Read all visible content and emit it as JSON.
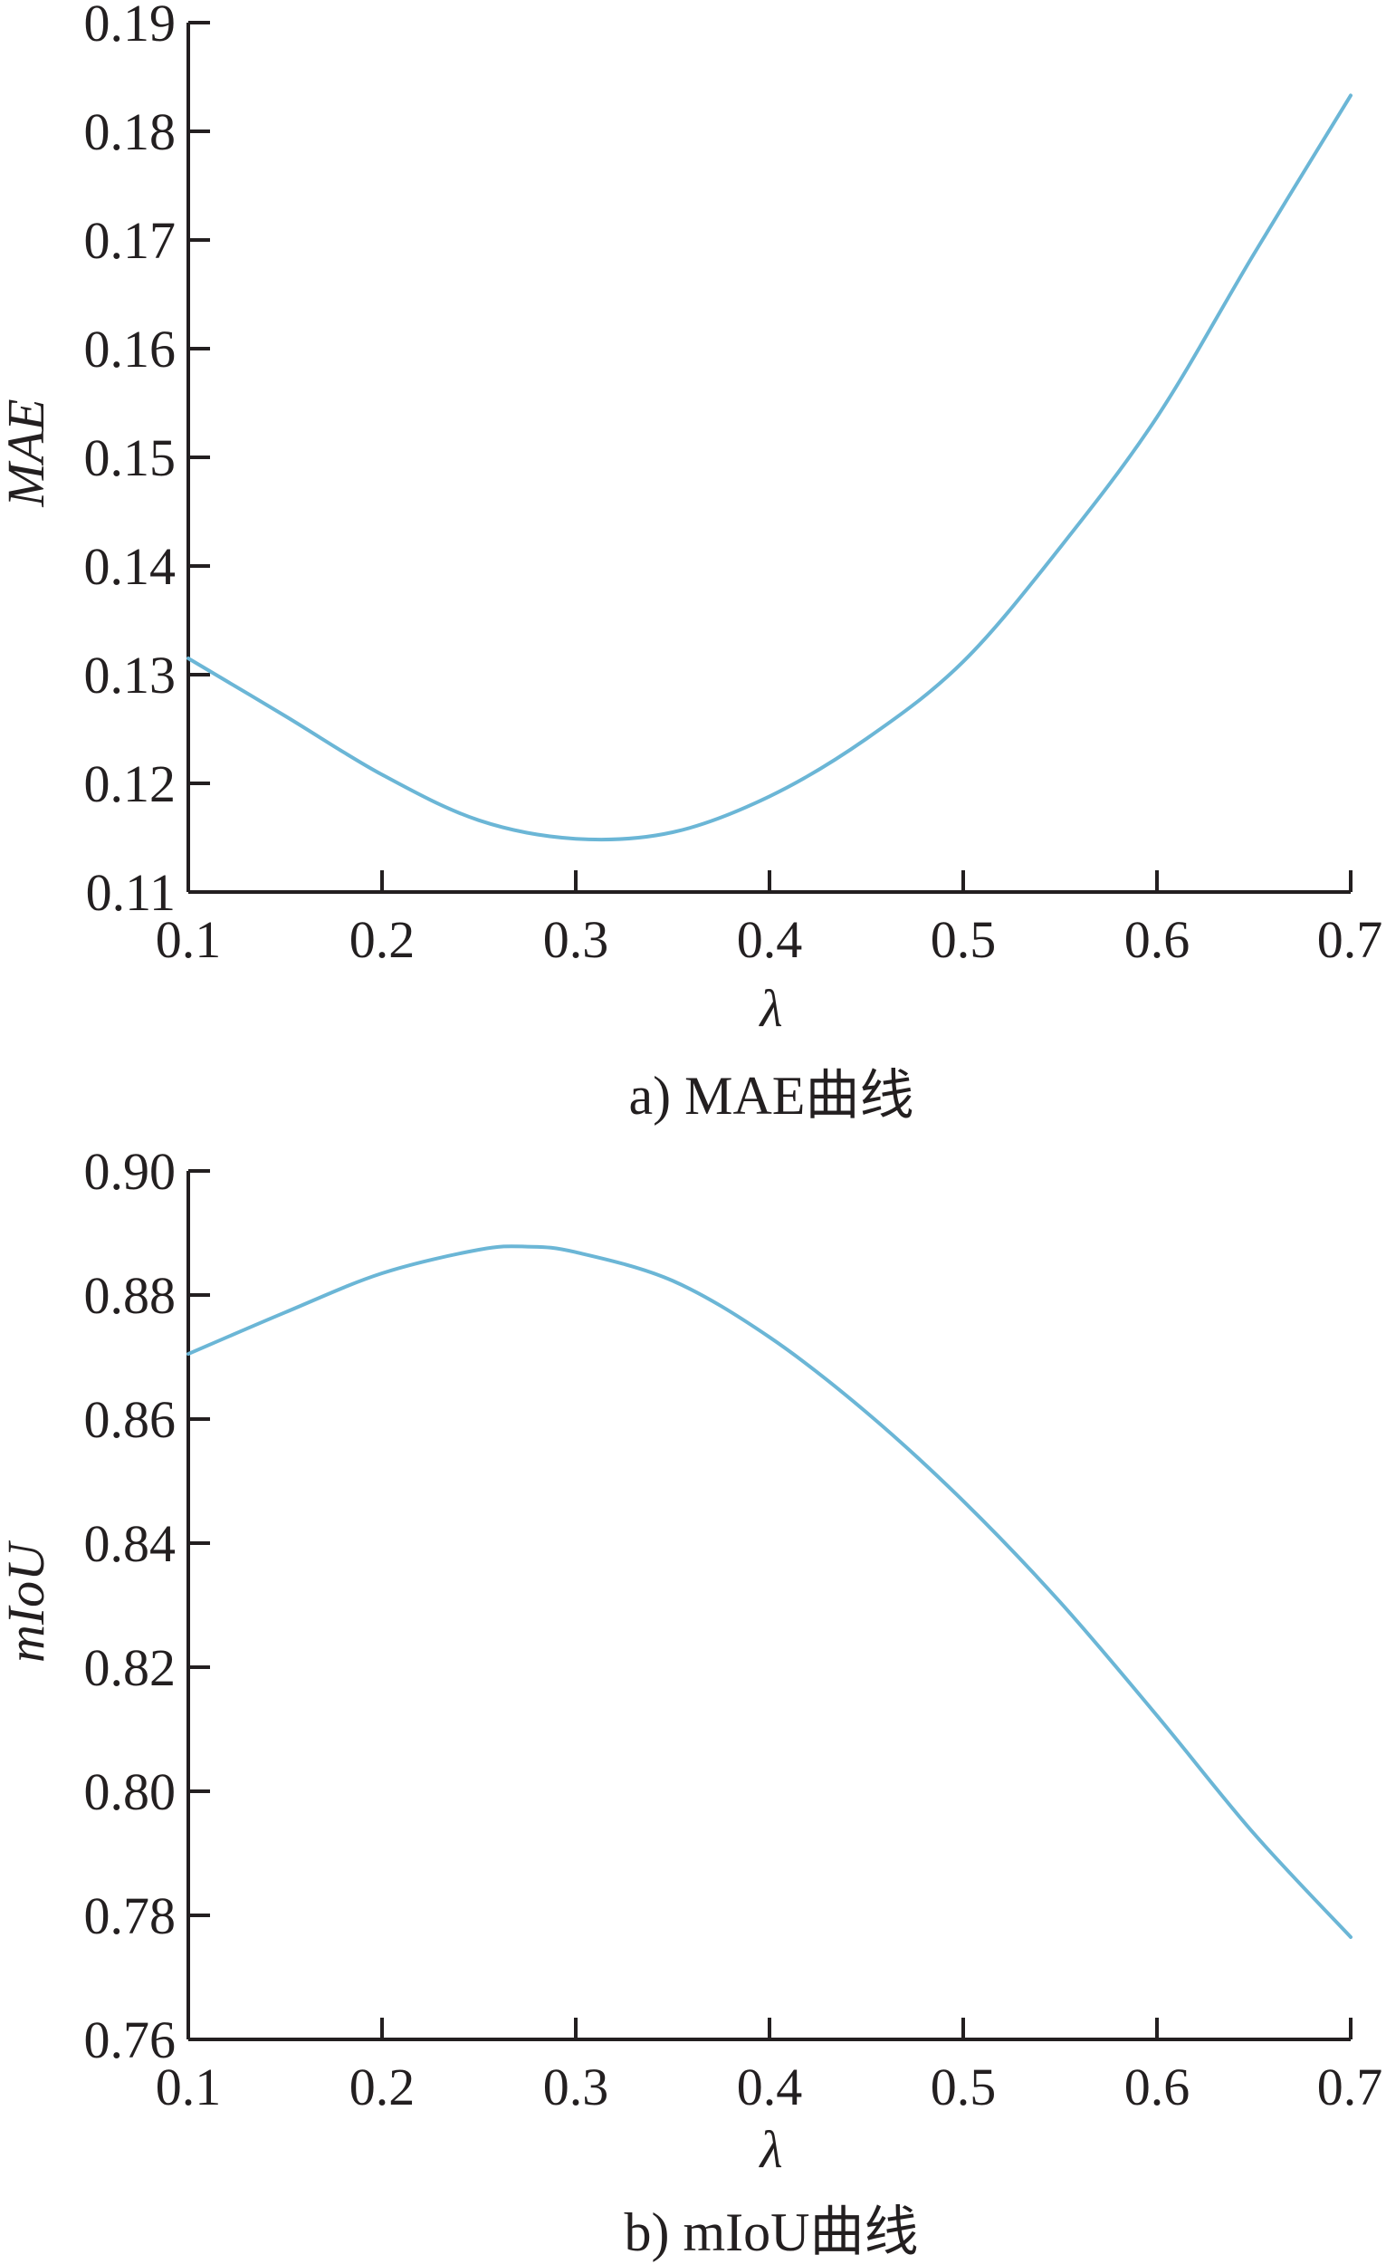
{
  "chart_data": [
    {
      "type": "line",
      "title": "",
      "caption": "a) MAE曲线",
      "xlabel": "λ",
      "ylabel": "MAE",
      "xlim": [
        0.1,
        0.7
      ],
      "ylim": [
        0.11,
        0.19
      ],
      "xticks": [
        "0.1",
        "0.2",
        "0.3",
        "0.4",
        "0.5",
        "0.6",
        "0.7"
      ],
      "yticks": [
        "0.11",
        "0.12",
        "0.13",
        "0.14",
        "0.15",
        "0.16",
        "0.17",
        "0.18",
        "0.19"
      ],
      "grid": false,
      "line_color": "#6bb6d6",
      "series": [
        {
          "x": [
            0.1,
            0.15,
            0.2,
            0.25,
            0.3,
            0.35,
            0.4,
            0.45,
            0.5,
            0.55,
            0.6,
            0.65,
            0.7
          ],
          "values": [
            0.1315,
            0.1262,
            0.1208,
            0.1166,
            0.1149,
            0.1155,
            0.1188,
            0.1241,
            0.1312,
            0.1417,
            0.1537,
            0.1687,
            0.1833
          ]
        }
      ]
    },
    {
      "type": "line",
      "title": "",
      "caption": "b) mIoU曲线",
      "xlabel": "λ",
      "ylabel": "mIoU",
      "xlim": [
        0.1,
        0.7
      ],
      "ylim": [
        0.76,
        0.9
      ],
      "xticks": [
        "0.1",
        "0.2",
        "0.3",
        "0.4",
        "0.5",
        "0.6",
        "0.7"
      ],
      "yticks": [
        "0.76",
        "0.78",
        "0.80",
        "0.82",
        "0.84",
        "0.86",
        "0.88",
        "0.90"
      ],
      "grid": false,
      "line_color": "#6bb6d6",
      "series": [
        {
          "x": [
            0.1,
            0.15,
            0.2,
            0.25,
            0.275,
            0.3,
            0.35,
            0.4,
            0.45,
            0.5,
            0.55,
            0.6,
            0.65,
            0.7
          ],
          "values": [
            0.8705,
            0.8772,
            0.8835,
            0.8873,
            0.8878,
            0.8869,
            0.8823,
            0.8732,
            0.8611,
            0.8468,
            0.8305,
            0.8122,
            0.7932,
            0.7765
          ]
        }
      ]
    }
  ]
}
